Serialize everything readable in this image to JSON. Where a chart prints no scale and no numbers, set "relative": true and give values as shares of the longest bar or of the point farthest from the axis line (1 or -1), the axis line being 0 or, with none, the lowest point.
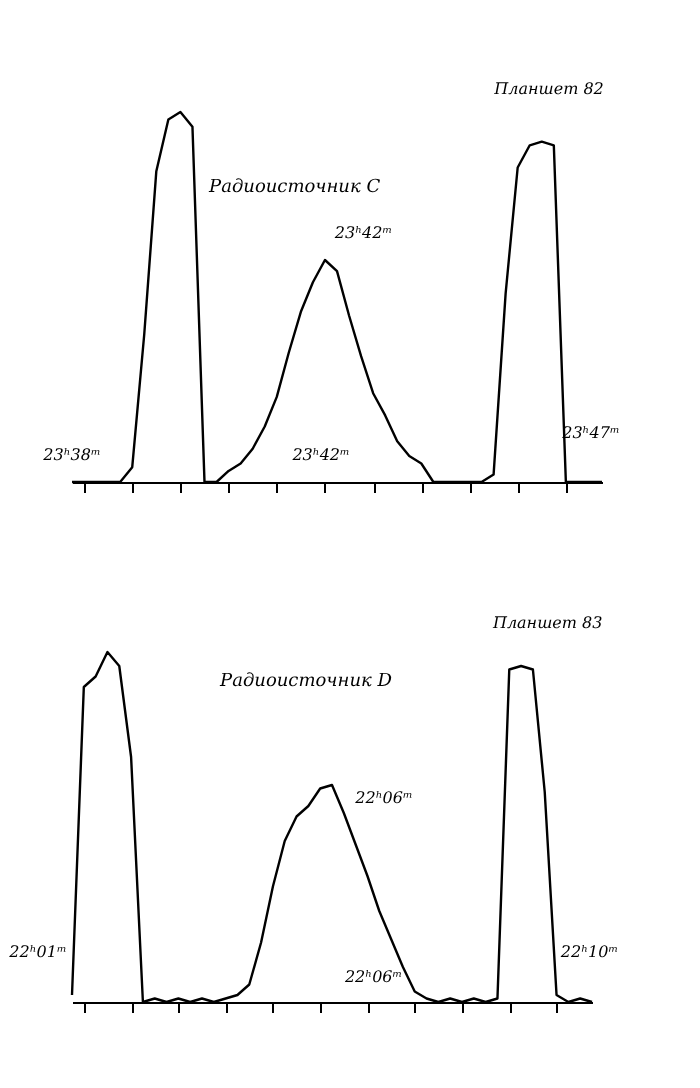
{
  "chart_data": [
    {
      "type": "line",
      "relative": true,
      "title": "Радиоисточник C",
      "color": "#000000",
      "annotations": [
        "Планшет 82",
        "23ʰ38ᵐ",
        "23ʰ42ᵐ",
        "23ʰ42ᵐ",
        "23ʰ47ᵐ"
      ],
      "categories": [
        null,
        null,
        null,
        null,
        null,
        null,
        null,
        null,
        null,
        null,
        null,
        null,
        null,
        null,
        null,
        null,
        null,
        null,
        null,
        null,
        null,
        null,
        null,
        null,
        null,
        null,
        null,
        null,
        null,
        null,
        null,
        null,
        null,
        null,
        null,
        null,
        null,
        null,
        null,
        null,
        null,
        null,
        null,
        null,
        null
      ],
      "values": [
        0,
        0,
        0,
        0,
        0,
        0.04,
        0.4,
        0.84,
        0.98,
        1,
        0.96,
        0,
        0,
        0.03,
        0.05,
        0.09,
        0.15,
        0.23,
        0.35,
        0.46,
        0.54,
        0.6,
        0.57,
        0.45,
        0.34,
        0.24,
        0.18,
        0.11,
        0.07,
        0.05,
        0,
        0,
        0,
        0,
        0,
        0.02,
        0.51,
        0.85,
        0.91,
        0.92,
        0.91,
        0,
        0,
        0,
        0
      ]
    },
    {
      "type": "line",
      "relative": true,
      "title": "Радиоисточник D",
      "color": "#000000",
      "annotations": [
        "Планшет 83",
        "22ʰ01ᵐ",
        "22ʰ06ᵐ",
        "22ʰ06ᵐ",
        "22ʰ10ᵐ"
      ],
      "categories": [
        null,
        null,
        null,
        null,
        null,
        null,
        null,
        null,
        null,
        null,
        null,
        null,
        null,
        null,
        null,
        null,
        null,
        null,
        null,
        null,
        null,
        null,
        null,
        null,
        null,
        null,
        null,
        null,
        null,
        null,
        null,
        null,
        null,
        null,
        null,
        null,
        null,
        null,
        null,
        null,
        null,
        null,
        null,
        null,
        null
      ],
      "values": [
        0.02,
        0.9,
        0.93,
        1,
        0.96,
        0.7,
        0,
        0.01,
        0,
        0.01,
        0,
        0.01,
        0,
        0.01,
        0.02,
        0.05,
        0.17,
        0.33,
        0.46,
        0.53,
        0.56,
        0.61,
        0.62,
        0.54,
        0.45,
        0.36,
        0.26,
        0.18,
        0.1,
        0.03,
        0.01,
        0,
        0.01,
        0,
        0.01,
        0,
        0.01,
        0.95,
        0.96,
        0.95,
        0.6,
        0.02,
        0,
        0.01,
        0
      ]
    }
  ]
}
